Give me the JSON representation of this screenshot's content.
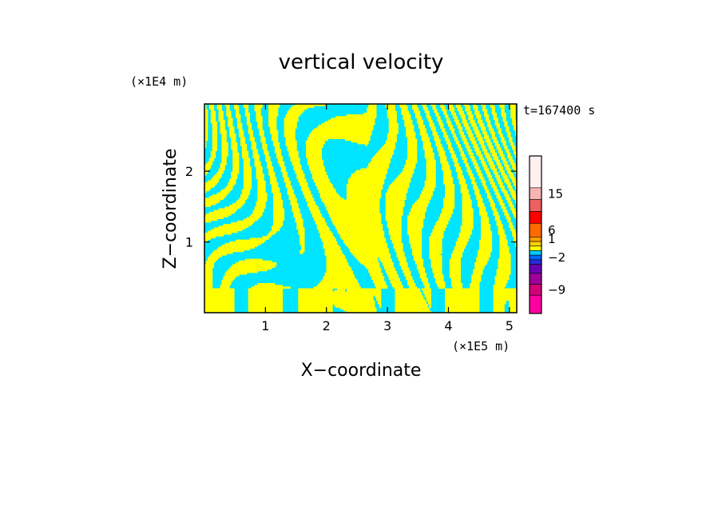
{
  "chart_data": {
    "type": "heatmap",
    "title": "vertical velocity",
    "xlabel": "X−coordinate",
    "ylabel": "Z−coordinate",
    "x_unit": "(×1E5 m)",
    "y_unit": "(×1E4 m)",
    "time_label": "t=167400 s",
    "xlim": [
      0,
      5.12
    ],
    "ylim": [
      0,
      2.95
    ],
    "x_ticks": [
      1,
      2,
      3,
      4,
      5
    ],
    "y_ticks": [
      1,
      2
    ],
    "fill_colors": {
      "positive_small": "#ffff00",
      "negative_small": "#00e5ff"
    },
    "colorbar": {
      "colors": [
        "#ff00a0",
        "#d4007a",
        "#a0009a",
        "#6a00b4",
        "#2a2ad8",
        "#0066ff",
        "#00ccff",
        "#ffff00",
        "#ffd000",
        "#ffa000",
        "#ff6a00",
        "#ff0000",
        "#f06060",
        "#f8b4b4",
        "#fff0f0"
      ],
      "weights": [
        2,
        1.2,
        1.2,
        1,
        0.5,
        0.5,
        0.5,
        0.5,
        0.5,
        0.5,
        1.5,
        1.3,
        1.3,
        1.3,
        3.5
      ],
      "labels": [
        {
          "text": "15",
          "index": 13
        },
        {
          "text": "6",
          "index": 10
        },
        {
          "text": "1",
          "index": 8
        },
        {
          "text": "−2",
          "index": 5
        },
        {
          "text": "−9",
          "index": 1
        }
      ]
    }
  }
}
